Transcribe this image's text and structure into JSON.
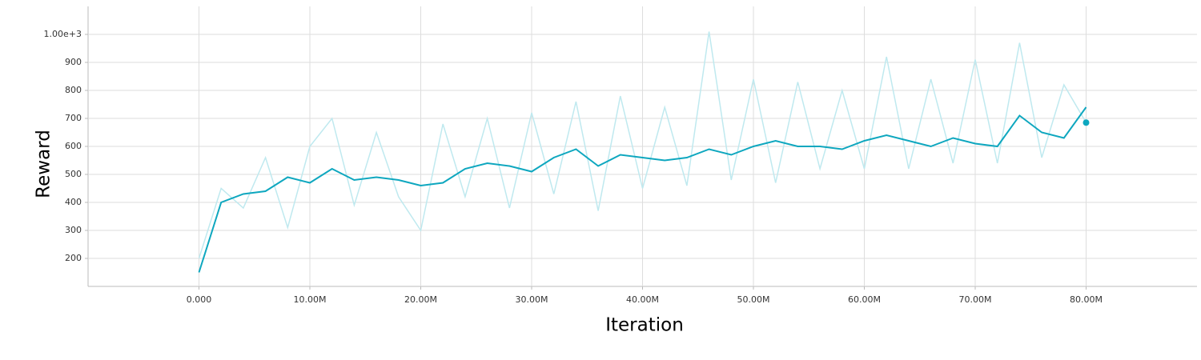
{
  "chart_data": {
    "type": "line",
    "x_label": "Iteration",
    "y_label": "Reward",
    "x": [
      0,
      2000000,
      4000000,
      6000000,
      8000000,
      10000000,
      12000000,
      14000000,
      16000000,
      18000000,
      20000000,
      22000000,
      24000000,
      26000000,
      28000000,
      30000000,
      32000000,
      34000000,
      36000000,
      38000000,
      40000000,
      42000000,
      44000000,
      46000000,
      48000000,
      50000000,
      52000000,
      54000000,
      56000000,
      58000000,
      60000000,
      62000000,
      64000000,
      66000000,
      68000000,
      70000000,
      72000000,
      74000000,
      76000000,
      78000000,
      80000000
    ],
    "series": [
      {
        "color": "#bfe9ef",
        "values": [
          200,
          450,
          380,
          560,
          310,
          600,
          700,
          390,
          650,
          420,
          300,
          680,
          420,
          700,
          380,
          720,
          430,
          760,
          370,
          780,
          450,
          740,
          460,
          1010,
          480,
          840,
          470,
          830,
          520,
          800,
          520,
          920,
          520,
          840,
          540,
          910,
          540,
          970,
          560,
          820,
          685
        ]
      },
      {
        "color": "#0ea7bf",
        "values": [
          150,
          400,
          430,
          440,
          490,
          470,
          520,
          480,
          490,
          480,
          460,
          470,
          520,
          540,
          530,
          510,
          560,
          590,
          530,
          570,
          560,
          550,
          560,
          590,
          570,
          600,
          620,
          600,
          600,
          590,
          620,
          640,
          620,
          600,
          630,
          610,
          600,
          710,
          650,
          630,
          740
        ]
      }
    ],
    "xlim": [
      -10000000,
      90000000
    ],
    "xticks": [
      {
        "value": 0,
        "label": "0.000"
      },
      {
        "value": 10000000,
        "label": "10.00M"
      },
      {
        "value": 20000000,
        "label": "20.00M"
      },
      {
        "value": 30000000,
        "label": "30.00M"
      },
      {
        "value": 40000000,
        "label": "40.00M"
      },
      {
        "value": 50000000,
        "label": "50.00M"
      },
      {
        "value": 60000000,
        "label": "60.00M"
      },
      {
        "value": 70000000,
        "label": "70.00M"
      },
      {
        "value": 80000000,
        "label": "80.00M"
      }
    ],
    "ylim": [
      100,
      1100
    ],
    "yticks": [
      200,
      300,
      400,
      500,
      600,
      700,
      800,
      900,
      {
        "value": 1000,
        "label": "1.00e+3"
      }
    ],
    "grid": true
  }
}
